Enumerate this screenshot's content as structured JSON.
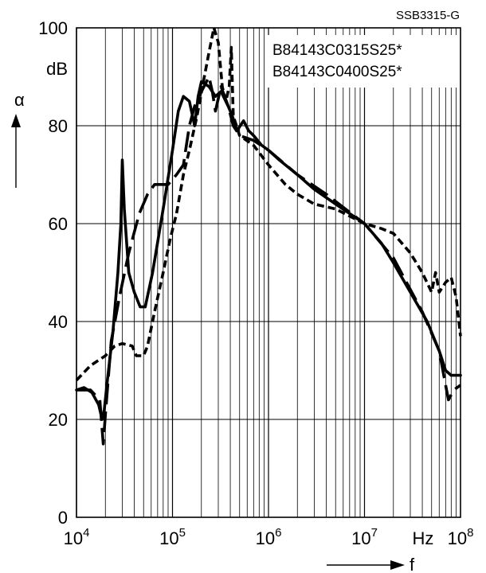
{
  "figure_id": "SSB3315-G",
  "chart_data": {
    "type": "line",
    "title": "",
    "xlabel": "f",
    "x_unit": "Hz",
    "ylabel": "α",
    "y_unit": "dB",
    "xscale": "log",
    "xlim": [
      10000,
      100000000
    ],
    "ylim": [
      0,
      100
    ],
    "y_ticks": [
      "0",
      "20",
      "40",
      "60",
      "80",
      "100"
    ],
    "x_ticks": [
      {
        "base": "10",
        "exp": "4"
      },
      {
        "base": "10",
        "exp": "5"
      },
      {
        "base": "10",
        "exp": "6"
      },
      {
        "base": "10",
        "exp": "7"
      },
      {
        "base": "10",
        "exp": "8"
      }
    ],
    "grid": true,
    "legend_entries": [
      "B84143C0315S25*",
      "B84143C0400S25*"
    ],
    "legend_position": "top-right",
    "series": [
      {
        "style": "solid",
        "points": [
          [
            10000,
            26
          ],
          [
            12000,
            26.5
          ],
          [
            14500,
            25.5
          ],
          [
            17000,
            23
          ],
          [
            18500,
            20
          ],
          [
            19500,
            22
          ],
          [
            21000,
            28
          ],
          [
            24000,
            38
          ],
          [
            27000,
            50
          ],
          [
            29000,
            60
          ],
          [
            30000,
            73
          ],
          [
            31500,
            63
          ],
          [
            35000,
            50
          ],
          [
            40000,
            46
          ],
          [
            46000,
            43
          ],
          [
            52000,
            43
          ],
          [
            62000,
            50
          ],
          [
            80000,
            63
          ],
          [
            100000,
            75
          ],
          [
            115000,
            83
          ],
          [
            130000,
            86
          ],
          [
            150000,
            85
          ],
          [
            170000,
            80
          ],
          [
            185000,
            86
          ],
          [
            200000,
            89
          ],
          [
            240000,
            88
          ],
          [
            280000,
            86
          ],
          [
            320000,
            87
          ],
          [
            380000,
            84
          ],
          [
            420000,
            82
          ],
          [
            470000,
            79
          ],
          [
            550000,
            81
          ],
          [
            620000,
            79
          ],
          [
            700000,
            78
          ],
          [
            850000,
            76
          ],
          [
            1000000,
            75
          ],
          [
            1300000,
            73
          ],
          [
            2000000,
            70
          ],
          [
            3000000,
            67
          ],
          [
            5000000,
            64
          ],
          [
            10000000,
            60
          ],
          [
            15000000,
            56
          ],
          [
            20000000,
            52
          ],
          [
            30000000,
            46
          ],
          [
            45000000,
            40
          ],
          [
            60000000,
            34
          ],
          [
            70000000,
            30
          ],
          [
            80000000,
            29
          ],
          [
            100000000,
            29
          ]
        ]
      },
      {
        "style": "long-dash",
        "points": [
          [
            10000,
            26
          ],
          [
            14000,
            26
          ],
          [
            17500,
            24
          ],
          [
            19000,
            15
          ],
          [
            20000,
            21
          ],
          [
            23000,
            36
          ],
          [
            28000,
            45
          ],
          [
            35000,
            54
          ],
          [
            45000,
            62
          ],
          [
            55000,
            66
          ],
          [
            65000,
            68
          ],
          [
            75000,
            68
          ],
          [
            90000,
            68
          ],
          [
            110000,
            70
          ],
          [
            130000,
            72
          ],
          [
            150000,
            80
          ],
          [
            170000,
            84
          ],
          [
            200000,
            87
          ],
          [
            240000,
            90
          ],
          [
            260000,
            87
          ],
          [
            280000,
            83
          ],
          [
            320000,
            88
          ],
          [
            380000,
            84
          ],
          [
            430000,
            80
          ],
          [
            500000,
            78
          ],
          [
            700000,
            77
          ],
          [
            1000000,
            75
          ],
          [
            2000000,
            70
          ],
          [
            4000000,
            66
          ],
          [
            10000000,
            60
          ],
          [
            20000000,
            53
          ],
          [
            40000000,
            42
          ],
          [
            60000000,
            34
          ],
          [
            70000000,
            27
          ],
          [
            75000000,
            24
          ],
          [
            85000000,
            26
          ],
          [
            100000000,
            27
          ]
        ]
      },
      {
        "style": "short-dash",
        "points": [
          [
            10000,
            28
          ],
          [
            14000,
            31
          ],
          [
            20000,
            33
          ],
          [
            25000,
            35
          ],
          [
            30000,
            35.5
          ],
          [
            38000,
            35
          ],
          [
            42000,
            33
          ],
          [
            50000,
            33
          ],
          [
            55000,
            35
          ],
          [
            65000,
            42
          ],
          [
            80000,
            50
          ],
          [
            95000,
            57
          ],
          [
            110000,
            62
          ],
          [
            130000,
            70
          ],
          [
            150000,
            75
          ],
          [
            180000,
            82
          ],
          [
            210000,
            89
          ],
          [
            240000,
            95
          ],
          [
            270000,
            100
          ],
          [
            300000,
            97
          ],
          [
            330000,
            88
          ],
          [
            360000,
            85
          ],
          [
            390000,
            88
          ],
          [
            410000,
            96
          ],
          [
            430000,
            82
          ],
          [
            500000,
            78
          ],
          [
            700000,
            76
          ],
          [
            1000000,
            72
          ],
          [
            1500000,
            68
          ],
          [
            2000000,
            66
          ],
          [
            3000000,
            64
          ],
          [
            5000000,
            63
          ],
          [
            10000000,
            60
          ],
          [
            15000000,
            59
          ],
          [
            20000000,
            58
          ],
          [
            30000000,
            54
          ],
          [
            40000000,
            50
          ],
          [
            50000000,
            46
          ],
          [
            55000000,
            50
          ],
          [
            60000000,
            46
          ],
          [
            70000000,
            48
          ],
          [
            80000000,
            49
          ],
          [
            90000000,
            45
          ],
          [
            100000000,
            37
          ]
        ]
      }
    ]
  }
}
